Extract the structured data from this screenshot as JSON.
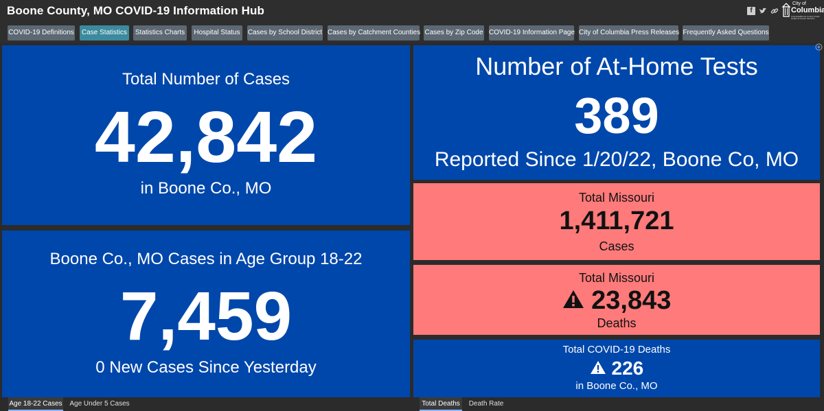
{
  "header": {
    "title": "Boone County, MO COVID-19 Information Hub",
    "social_icons": [
      "facebook-icon",
      "twitter-icon",
      "link-icon"
    ],
    "logo": {
      "city_of": "City of",
      "name": "Columbia",
      "sub": "Columbia/Boone County Public Health & Human Services"
    }
  },
  "nav": {
    "tabs": [
      {
        "label": "COVID-19 Definitions",
        "active": false
      },
      {
        "label": "Case Statistics",
        "active": true
      },
      {
        "label": "Statistics Charts",
        "active": false
      },
      {
        "label": "Hospital Status",
        "active": false
      },
      {
        "label": "Cases by School District",
        "active": false
      },
      {
        "label": "Cases by Catchment Counties",
        "active": false
      },
      {
        "label": "Cases by Zip Code",
        "active": false
      },
      {
        "label": "COVID-19 Information Page",
        "active": false
      },
      {
        "label": "City of Columbia Press Releases",
        "active": false
      },
      {
        "label": "Frequently Asked Questions",
        "active": false
      }
    ]
  },
  "panels": {
    "total_cases": {
      "heading": "Total Number of Cases",
      "value": "42,842",
      "footer": "in Boone Co., MO"
    },
    "age_group": {
      "heading": "Boone Co., MO Cases in Age Group 18-22",
      "value": "7,459",
      "footer": "0 New Cases Since Yesterday"
    },
    "at_home_tests": {
      "heading": "Number of At-Home Tests",
      "value": "389",
      "footer": "Reported Since 1/20/22, Boone Co, MO"
    },
    "missouri_cases": {
      "heading": "Total Missouri",
      "value": "1,411,721",
      "footer": "Cases"
    },
    "missouri_deaths": {
      "heading": "Total Missouri",
      "value": "23,843",
      "footer": "Deaths"
    },
    "boone_deaths": {
      "heading": "Total COVID-19 Deaths",
      "value": "226",
      "footer": "in Boone Co., MO"
    }
  },
  "bottom_tabs_left": [
    {
      "label": "Age 18-22 Cases",
      "active": true
    },
    {
      "label": "Age Under 5 Cases",
      "active": false
    }
  ],
  "bottom_tabs_right": [
    {
      "label": "Total Deaths",
      "active": true
    },
    {
      "label": "Death Rate",
      "active": false
    }
  ],
  "colors": {
    "panel_blue": "#0047ab",
    "panel_pink": "#ff7a7a",
    "active_tab": "#3b8a9e",
    "tab": "#5c6873"
  }
}
